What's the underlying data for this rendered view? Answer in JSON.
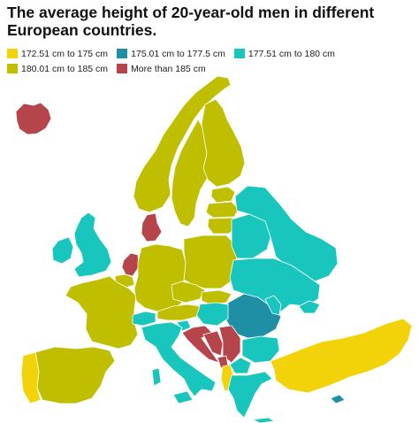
{
  "title": "The average height of 20-year-old men in different European countries.",
  "colors": {
    "c1": "#f2d30a",
    "c2": "#1f8fa6",
    "c3": "#19c6bd",
    "c4": "#bfbf00",
    "c5": "#b5444b"
  },
  "legend": [
    {
      "label": "172.51 cm to 175 cm",
      "color": "#f2d30a"
    },
    {
      "label": "175.01 cm to 177.5 cm",
      "color": "#1f8fa6"
    },
    {
      "label": "177.51 cm to 180 cm",
      "color": "#19c6bd"
    },
    {
      "label": "180.01 cm to 185 cm",
      "color": "#bfbf00"
    },
    {
      "label": "More than 185 cm",
      "color": "#b5444b"
    }
  ]
}
